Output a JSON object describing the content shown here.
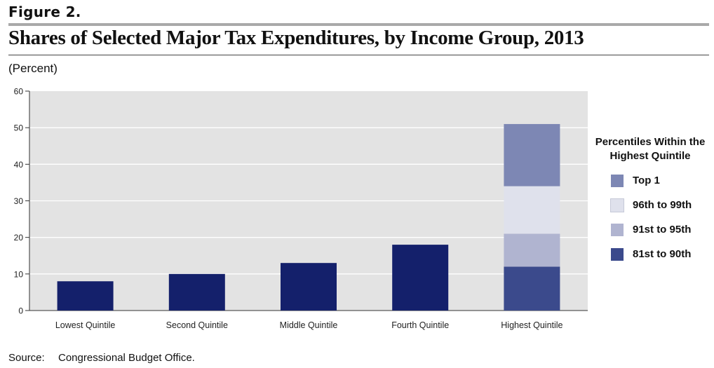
{
  "figure_label": "Figure 2.",
  "title": "Shares of Selected Major Tax Expenditures, by Income Group, 2013",
  "units": "(Percent)",
  "source_label": "Source:",
  "source_text": "Congressional Budget Office.",
  "colors": {
    "plot_bg": "#e3e3e3",
    "bar": "#14206b",
    "top1": "#7d87b4",
    "p96_99": "#dfe1ec",
    "p91_95": "#b0b4d0",
    "p81_90": "#3b4a8c"
  },
  "chart_data": {
    "type": "bar",
    "categories": [
      "Lowest Quintile",
      "Second Quintile",
      "Middle Quintile",
      "Fourth Quintile",
      "Highest Quintile"
    ],
    "values": [
      8,
      10,
      13,
      18,
      51
    ],
    "highest_breakdown": [
      {
        "name": "81st to 90th",
        "value": 12
      },
      {
        "name": "91st to 95th",
        "value": 9
      },
      {
        "name": "96th to 99th",
        "value": 13
      },
      {
        "name": "Top 1",
        "value": 17
      }
    ],
    "legend_title": "Percentiles Within the Highest Quintile",
    "legend_order": [
      "Top 1",
      "96th to 99th",
      "91st to 95th",
      "81st to 90th"
    ],
    "ylim": [
      0,
      60
    ],
    "yticks": [
      0,
      10,
      20,
      30,
      40,
      50,
      60
    ],
    "grid": true,
    "legend_position": "right"
  }
}
